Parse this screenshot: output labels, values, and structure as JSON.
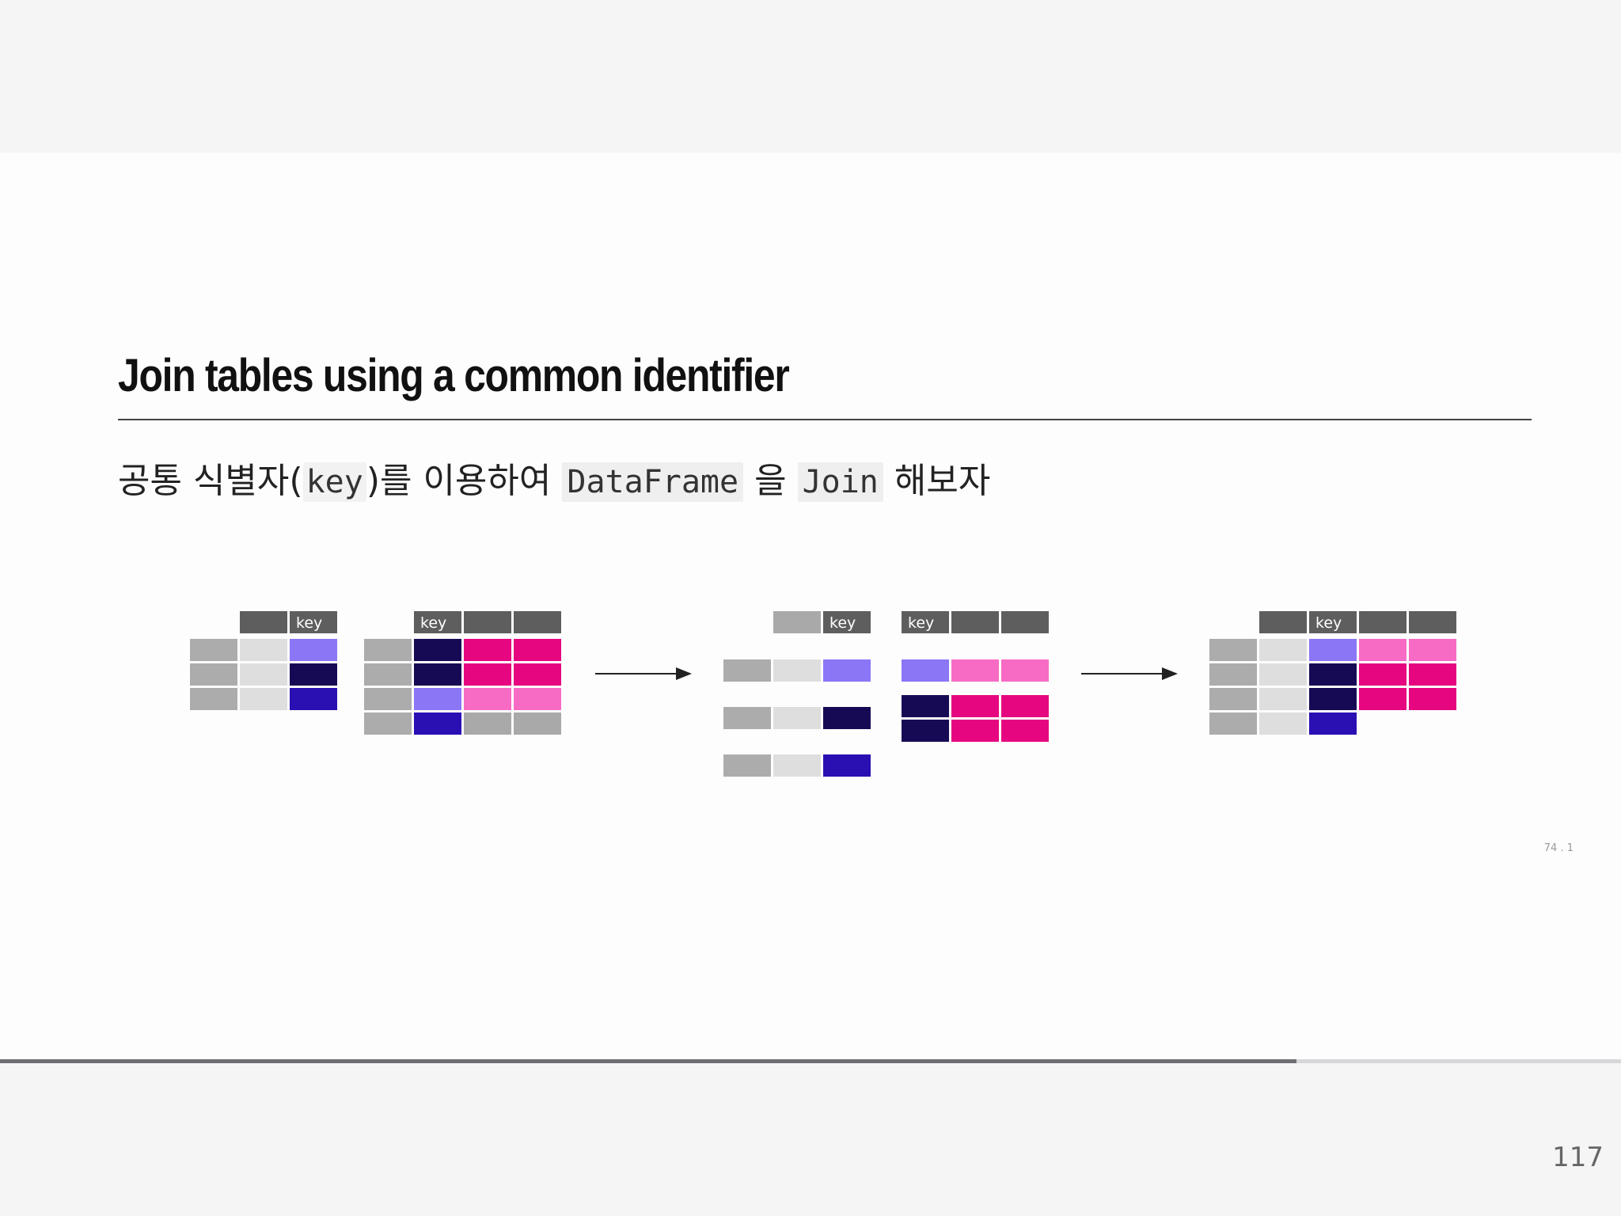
{
  "slide": {
    "title": "Join tables using a common identifier",
    "subtitle": {
      "part1": "공통 식별자(",
      "code_key": "key",
      "part2": ")를 이용하여 ",
      "code_dataframe": "DataFrame",
      "part3": " 을 ",
      "code_join": "Join",
      "part4": " 해보자"
    },
    "slide_number": "74 . 1"
  },
  "diagram": {
    "key_label": "key",
    "colors": {
      "header": "#5e5e5e",
      "header_light": "#a9a9a9",
      "gray": "#acacac",
      "light": "#dededf",
      "lavender": "#8b76f6",
      "navy": "#170a55",
      "indigo": "#2a0fb3",
      "hot_pink": "#e6067f",
      "light_pink": "#f86bc4",
      "arrow": "#222222"
    }
  },
  "progress": {
    "fraction": 0.8
  },
  "footer": {
    "page_number": "117"
  }
}
